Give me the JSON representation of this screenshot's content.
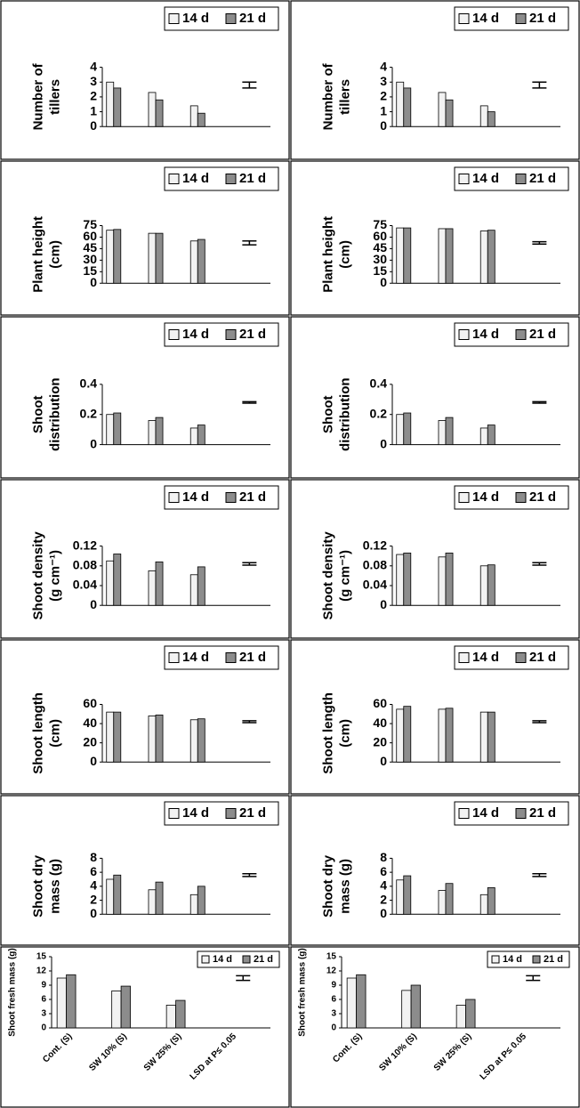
{
  "chart_data": [
    {
      "type": "bar",
      "ylabel": [
        "Number of",
        "tillers"
      ],
      "categories": [
        null,
        null,
        null,
        null
      ],
      "series": [
        {
          "name": "14 d",
          "color": "#f2f2f2",
          "values": [
            3.0,
            2.3,
            1.4,
            null
          ]
        },
        {
          "name": "21 d",
          "color": "#8c8c8c",
          "values": [
            2.6,
            1.8,
            0.9,
            null
          ]
        }
      ],
      "lsd": 0.4,
      "ylim": [
        0,
        4
      ],
      "yticks": [
        0,
        1,
        2,
        3,
        4
      ]
    },
    {
      "type": "bar",
      "ylabel": [
        "Number of",
        "tillers"
      ],
      "categories": [
        null,
        null,
        null,
        null
      ],
      "series": [
        {
          "name": "14 d",
          "color": "#f2f2f2",
          "values": [
            3.0,
            2.3,
            1.4,
            null
          ]
        },
        {
          "name": "21 d",
          "color": "#8c8c8c",
          "values": [
            2.6,
            1.8,
            1.0,
            null
          ]
        }
      ],
      "lsd": 0.4,
      "ylim": [
        0,
        4
      ],
      "yticks": [
        0,
        1,
        2,
        3,
        4
      ]
    },
    {
      "type": "bar",
      "ylabel": [
        "Plant height",
        "(cm)"
      ],
      "categories": [
        null,
        null,
        null,
        null
      ],
      "series": [
        {
          "name": "14 d",
          "color": "#f2f2f2",
          "values": [
            69,
            65,
            55,
            null
          ]
        },
        {
          "name": "21 d",
          "color": "#8c8c8c",
          "values": [
            70,
            65,
            57,
            null
          ]
        }
      ],
      "lsd": 5,
      "ylim": [
        0,
        75
      ],
      "yticks": [
        0,
        15,
        30,
        45,
        60,
        75
      ]
    },
    {
      "type": "bar",
      "ylabel": [
        "Plant height",
        "(cm)"
      ],
      "categories": [
        null,
        null,
        null,
        null
      ],
      "series": [
        {
          "name": "14 d",
          "color": "#f2f2f2",
          "values": [
            72,
            71,
            68,
            null
          ]
        },
        {
          "name": "21 d",
          "color": "#8c8c8c",
          "values": [
            72,
            71,
            69,
            null
          ]
        }
      ],
      "lsd": 3,
      "ylim": [
        0,
        75
      ],
      "yticks": [
        0,
        15,
        30,
        45,
        60,
        75
      ]
    },
    {
      "type": "bar",
      "ylabel": [
        "Shoot",
        "distribution"
      ],
      "categories": [
        null,
        null,
        null,
        null
      ],
      "series": [
        {
          "name": "14 d",
          "color": "#f2f2f2",
          "values": [
            0.2,
            0.16,
            0.11,
            null
          ]
        },
        {
          "name": "21 d",
          "color": "#8c8c8c",
          "values": [
            0.21,
            0.18,
            0.13,
            null
          ]
        }
      ],
      "lsd": 0.01,
      "ylim": [
        0,
        0.4
      ],
      "yticks": [
        0,
        0.2,
        0.4
      ]
    },
    {
      "type": "bar",
      "ylabel": [
        "Shoot",
        "distribution"
      ],
      "categories": [
        null,
        null,
        null,
        null
      ],
      "series": [
        {
          "name": "14 d",
          "color": "#f2f2f2",
          "values": [
            0.2,
            0.16,
            0.11,
            null
          ]
        },
        {
          "name": "21 d",
          "color": "#8c8c8c",
          "values": [
            0.21,
            0.18,
            0.13,
            null
          ]
        }
      ],
      "lsd": 0.01,
      "ylim": [
        0,
        0.4
      ],
      "yticks": [
        0,
        0.2,
        0.4
      ]
    },
    {
      "type": "bar",
      "ylabel": [
        "Shoot density",
        "(g cm⁻¹)"
      ],
      "categories": [
        null,
        null,
        null,
        null
      ],
      "series": [
        {
          "name": "14 d",
          "color": "#f2f2f2",
          "values": [
            0.09,
            0.07,
            0.062,
            null
          ]
        },
        {
          "name": "21 d",
          "color": "#8c8c8c",
          "values": [
            0.104,
            0.088,
            0.078,
            null
          ]
        }
      ],
      "lsd": 0.005,
      "ylim": [
        0,
        0.12
      ],
      "yticks": [
        0,
        0.04,
        0.08,
        0.12
      ]
    },
    {
      "type": "bar",
      "ylabel": [
        "Shoot density",
        "(g cm⁻¹)"
      ],
      "categories": [
        null,
        null,
        null,
        null
      ],
      "series": [
        {
          "name": "14 d",
          "color": "#f2f2f2",
          "values": [
            0.103,
            0.098,
            0.08,
            null
          ]
        },
        {
          "name": "21 d",
          "color": "#8c8c8c",
          "values": [
            0.106,
            0.106,
            0.082,
            null
          ]
        }
      ],
      "lsd": 0.005,
      "ylim": [
        0,
        0.12
      ],
      "yticks": [
        0,
        0.04,
        0.08,
        0.12
      ]
    },
    {
      "type": "bar",
      "ylabel": [
        "Shoot length",
        "(cm)"
      ],
      "categories": [
        null,
        null,
        null,
        null
      ],
      "series": [
        {
          "name": "14 d",
          "color": "#f2f2f2",
          "values": [
            52,
            48,
            44,
            null
          ]
        },
        {
          "name": "21 d",
          "color": "#8c8c8c",
          "values": [
            52,
            49,
            45,
            null
          ]
        }
      ],
      "lsd": 2,
      "ylim": [
        0,
        60
      ],
      "yticks": [
        0,
        20,
        40,
        60
      ]
    },
    {
      "type": "bar",
      "ylabel": [
        "Shoot length",
        "(cm)"
      ],
      "categories": [
        null,
        null,
        null,
        null
      ],
      "series": [
        {
          "name": "14 d",
          "color": "#f2f2f2",
          "values": [
            55,
            55,
            52,
            null
          ]
        },
        {
          "name": "21 d",
          "color": "#8c8c8c",
          "values": [
            58,
            56,
            52,
            null
          ]
        }
      ],
      "lsd": 2,
      "ylim": [
        0,
        60
      ],
      "yticks": [
        0,
        20,
        40,
        60
      ]
    },
    {
      "type": "bar",
      "ylabel": [
        "Shoot dry",
        "mass (g)"
      ],
      "categories": [
        null,
        null,
        null,
        null
      ],
      "series": [
        {
          "name": "14 d",
          "color": "#f2f2f2",
          "values": [
            5.0,
            3.5,
            2.8,
            null
          ]
        },
        {
          "name": "21 d",
          "color": "#8c8c8c",
          "values": [
            5.6,
            4.6,
            4.0,
            null
          ]
        }
      ],
      "lsd": 0.4,
      "ylim": [
        0,
        8
      ],
      "yticks": [
        0,
        2,
        4,
        6,
        8
      ]
    },
    {
      "type": "bar",
      "ylabel": [
        "Shoot dry",
        "mass (g)"
      ],
      "categories": [
        null,
        null,
        null,
        null
      ],
      "series": [
        {
          "name": "14 d",
          "color": "#f2f2f2",
          "values": [
            4.9,
            3.4,
            2.8,
            null
          ]
        },
        {
          "name": "21 d",
          "color": "#8c8c8c",
          "values": [
            5.5,
            4.4,
            3.8,
            null
          ]
        }
      ],
      "lsd": 0.4,
      "ylim": [
        0,
        8
      ],
      "yticks": [
        0,
        2,
        4,
        6,
        8
      ]
    },
    {
      "type": "bar",
      "ylabel": [
        "Shoot fresh mass (g)"
      ],
      "categories": [
        "Cont. (S)",
        "SW 10% (S)",
        "SW 25% (S)",
        "LSD at P≤ 0.05"
      ],
      "series": [
        {
          "name": "14 d",
          "color": "#f2f2f2",
          "values": [
            10.5,
            7.8,
            4.8,
            null
          ]
        },
        {
          "name": "21 d",
          "color": "#8c8c8c",
          "values": [
            11.2,
            8.8,
            5.8,
            null
          ]
        }
      ],
      "lsd": 1,
      "ylim": [
        0,
        15
      ],
      "yticks": [
        0,
        3,
        6,
        9,
        12,
        15
      ]
    },
    {
      "type": "bar",
      "ylabel": [
        "Shoot fresh mass (g)"
      ],
      "categories": [
        "Cont. (S)",
        "SW 10% (S)",
        "SW 25% (S)",
        "LSD at P≤ 0.05"
      ],
      "series": [
        {
          "name": "14 d",
          "color": "#f2f2f2",
          "values": [
            10.5,
            7.9,
            4.8,
            null
          ]
        },
        {
          "name": "21 d",
          "color": "#8c8c8c",
          "values": [
            11.2,
            9.0,
            6.0,
            null
          ]
        }
      ],
      "lsd": 1,
      "ylim": [
        0,
        15
      ],
      "yticks": [
        0,
        3,
        6,
        9,
        12,
        15
      ]
    }
  ]
}
